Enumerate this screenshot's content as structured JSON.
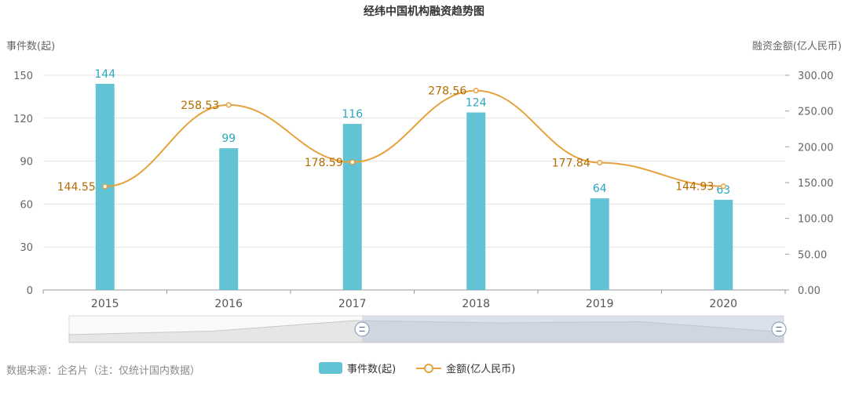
{
  "chart_data": {
    "type": "bar",
    "title": "经纬中国机构融资趋势图",
    "categories": [
      "2015",
      "2016",
      "2017",
      "2018",
      "2019",
      "2020"
    ],
    "series": [
      {
        "name": "事件数(起)",
        "type": "bar",
        "axis": "left",
        "color": "#62c3d4",
        "values": [
          144,
          99,
          116,
          124,
          64,
          63
        ]
      },
      {
        "name": "金额(亿人民币)",
        "type": "line",
        "axis": "right",
        "color": "#e6a23c",
        "values": [
          144.55,
          258.53,
          178.59,
          278.56,
          177.84,
          144.93
        ]
      }
    ],
    "ylabel": "事件数(起)",
    "y2label": "融资金额(亿人民币)",
    "ylim": [
      0,
      150
    ],
    "y2lim": [
      0,
      300
    ],
    "yticks": [
      "0",
      "30",
      "60",
      "90",
      "120",
      "150"
    ],
    "y2ticks": [
      "0.00",
      "50.00",
      "100.00",
      "150.00",
      "200.00",
      "250.00",
      "300.00"
    ],
    "line_labels": [
      "144.55",
      "258.53",
      "178.59",
      "278.56",
      "177.84",
      "144.93"
    ],
    "bar_labels": [
      "144",
      "99",
      "116",
      "124",
      "64",
      "63"
    ],
    "grid": true,
    "legend": "bottom-center"
  },
  "source_note": "数据来源：企名片（注：仅统计国内数据）",
  "legend": {
    "bar": "事件数(起)",
    "line": "金额(亿人民币)"
  },
  "colors": {
    "bar": "#62c3d4",
    "line": "#e6a23c",
    "line_label": "#b36b00",
    "bar_label": "#2aa7bf"
  },
  "datazoom": {
    "range_start_pct": 41,
    "range_end_pct": 100
  }
}
